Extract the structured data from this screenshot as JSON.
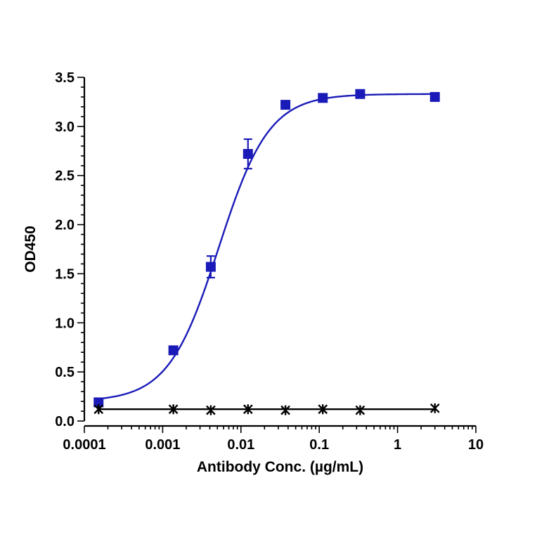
{
  "chart_data": {
    "type": "scatter",
    "title": "",
    "xlabel": "Antibody Conc. (µg/mL)",
    "ylabel": "OD450",
    "x_scale": "log",
    "xlim": [
      0.0001,
      10
    ],
    "ylim": [
      0,
      3.5
    ],
    "x_ticks": [
      {
        "value": 0.0001,
        "label": "0.0001"
      },
      {
        "value": 0.001,
        "label": "0.001"
      },
      {
        "value": 0.01,
        "label": "0.01"
      },
      {
        "value": 0.1,
        "label": "0.1"
      },
      {
        "value": 1,
        "label": "1"
      },
      {
        "value": 10,
        "label": "10"
      }
    ],
    "y_ticks": [
      {
        "value": 0,
        "label": "0.0"
      },
      {
        "value": 0.5,
        "label": "0.5"
      },
      {
        "value": 1,
        "label": "1.0"
      },
      {
        "value": 1.5,
        "label": "1.5"
      },
      {
        "value": 2,
        "label": "2.0"
      },
      {
        "value": 2.5,
        "label": "2.5"
      },
      {
        "value": 3,
        "label": "3.0"
      },
      {
        "value": 3.5,
        "label": "3.5"
      }
    ],
    "grid": false,
    "legend": "none",
    "series": [
      {
        "marker": "square",
        "color": "#1a1ab8",
        "line_color": "#1a1ab8",
        "fit": "4pl",
        "fit_params": {
          "bottom": 0.2,
          "top": 3.33,
          "ec50": 0.0052,
          "hill": 1.35
        },
        "points": [
          {
            "x": 0.000152,
            "y": 0.19,
            "err": 0.01
          },
          {
            "x": 0.00137,
            "y": 0.72,
            "err": 0.02
          },
          {
            "x": 0.00412,
            "y": 1.57,
            "err": 0.11
          },
          {
            "x": 0.0123,
            "y": 2.72,
            "err": 0.15
          },
          {
            "x": 0.037,
            "y": 3.22,
            "err": 0.04
          },
          {
            "x": 0.111,
            "y": 3.29,
            "err": 0.02
          },
          {
            "x": 0.333,
            "y": 3.33,
            "err": 0.01
          },
          {
            "x": 3.0,
            "y": 3.3,
            "err": 0.01
          }
        ]
      },
      {
        "marker": "asterisk",
        "color": "#000000",
        "line_color": "#000000",
        "fit": "flat",
        "fit_value": 0.12,
        "points": [
          {
            "x": 0.000152,
            "y": 0.12
          },
          {
            "x": 0.00137,
            "y": 0.12
          },
          {
            "x": 0.00412,
            "y": 0.11
          },
          {
            "x": 0.0123,
            "y": 0.12
          },
          {
            "x": 0.037,
            "y": 0.11
          },
          {
            "x": 0.111,
            "y": 0.12
          },
          {
            "x": 0.333,
            "y": 0.11
          },
          {
            "x": 3.0,
            "y": 0.13
          }
        ]
      }
    ]
  }
}
